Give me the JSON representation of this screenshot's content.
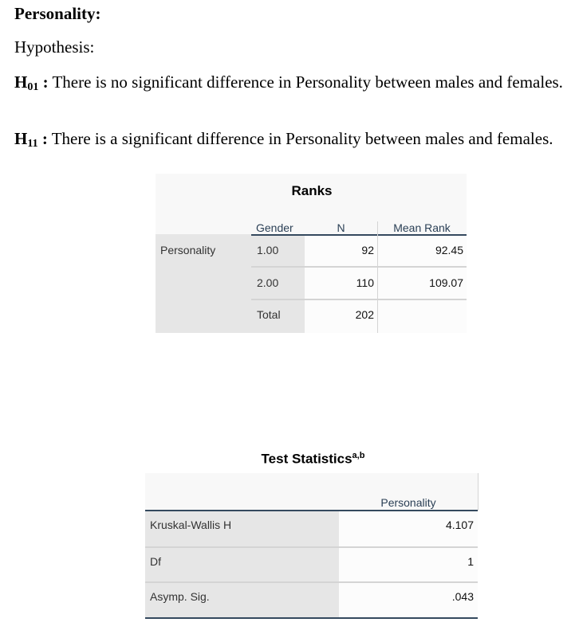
{
  "document": {
    "heading": "Personality:",
    "hypothesis_label": "Hypothesis:",
    "h0": {
      "label": "H",
      "sub": "01",
      "colon": " :",
      "text": " There is no significant difference in Personality between males and females."
    },
    "h1": {
      "label": "H",
      "sub": "11",
      "colon": " :",
      "text": " There is a significant difference in Personality between males and females."
    }
  },
  "ranks": {
    "title": "Ranks",
    "headers": {
      "gender": "Gender",
      "n": "N",
      "mean_rank": "Mean Rank"
    },
    "row_label": "Personality",
    "rows": [
      {
        "gender": "1.00",
        "n": "92",
        "mean_rank": "92.45"
      },
      {
        "gender": "2.00",
        "n": "110",
        "mean_rank": "109.07"
      },
      {
        "gender": "Total",
        "n": "202",
        "mean_rank": ""
      }
    ]
  },
  "test_statistics": {
    "title": "Test Statistics",
    "title_sup": "a,b",
    "column": "Personality",
    "rows": [
      {
        "label": "Kruskal-Wallis H",
        "value": "4.107"
      },
      {
        "label": "Df",
        "value": "1"
      },
      {
        "label": "Asymp. Sig.",
        "value": ".043"
      }
    ]
  }
}
